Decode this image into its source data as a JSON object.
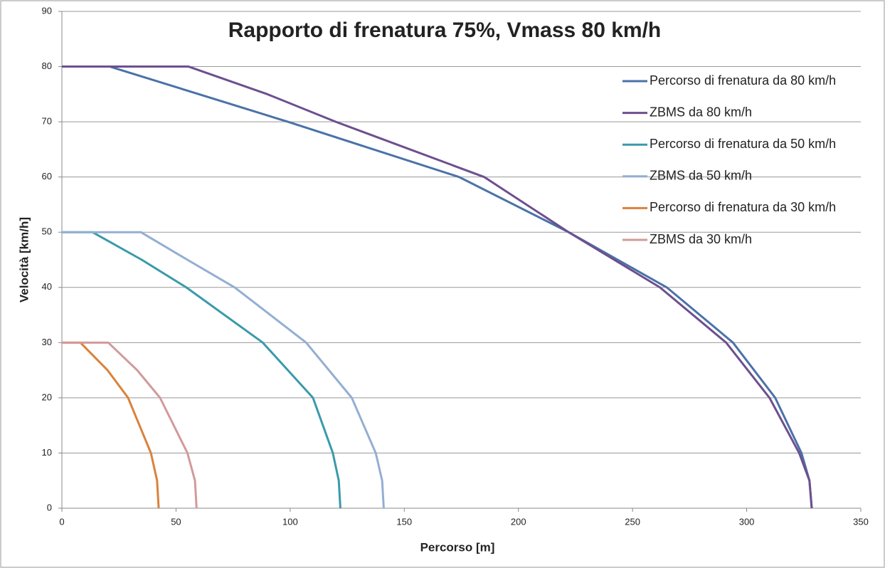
{
  "chart_data": {
    "type": "line",
    "title": "Rapporto di frenatura 75%, Vmass 80 km/h",
    "x_label": "Percorso [m]",
    "y_label": "Velocità [km/h]",
    "xlim": [
      0,
      350
    ],
    "ylim": [
      0,
      90
    ],
    "xticks": [
      0,
      50,
      100,
      150,
      200,
      250,
      300,
      350
    ],
    "yticks": [
      0,
      10,
      20,
      30,
      40,
      50,
      60,
      70,
      80,
      90
    ],
    "grid": true,
    "legend": "right",
    "series": [
      {
        "name": "Percorso di frenatura da 80 km/h",
        "color": "#4a72a8",
        "x": [
          0,
          21,
          60,
          99,
          174,
          222,
          265,
          294,
          312.5,
          324,
          327.5,
          328.5
        ],
        "values": [
          80,
          80,
          75,
          70,
          60,
          50,
          40,
          30,
          20,
          10,
          5,
          0
        ]
      },
      {
        "name": "ZBMS da 80 km/h",
        "color": "#6d4f8f",
        "x": [
          0,
          55.5,
          90,
          120,
          185,
          222,
          262,
          291,
          310,
          323,
          327.5,
          328.5
        ],
        "values": [
          80,
          80,
          75,
          70,
          60,
          50,
          40,
          30,
          20,
          10,
          5,
          0
        ]
      },
      {
        "name": "Percorso di frenatura da 50 km/h",
        "color": "#3a9aaa",
        "x": [
          0,
          13.4,
          35,
          54.5,
          88,
          110,
          118.7,
          121.3,
          122
        ],
        "values": [
          50,
          50,
          45,
          40,
          30,
          20,
          10,
          5,
          0
        ]
      },
      {
        "name": "ZBMS da 50 km/h",
        "color": "#94aed3",
        "x": [
          0,
          34.6,
          55,
          75.7,
          107,
          127,
          137.5,
          140.3,
          141
        ],
        "values": [
          50,
          50,
          45,
          40,
          30,
          20,
          10,
          5,
          0
        ]
      },
      {
        "name": "Percorso di frenatura da 30 km/h",
        "color": "#d9823b",
        "x": [
          0,
          8.1,
          20,
          29,
          39,
          41.7,
          42.4
        ],
        "values": [
          30,
          30,
          25,
          20,
          10,
          5,
          0
        ]
      },
      {
        "name": "ZBMS da 30 km/h",
        "color": "#d29a9a",
        "x": [
          0,
          20.3,
          33,
          43,
          55,
          58.3,
          59
        ],
        "values": [
          30,
          30,
          25,
          20,
          10,
          5,
          0
        ]
      }
    ]
  }
}
